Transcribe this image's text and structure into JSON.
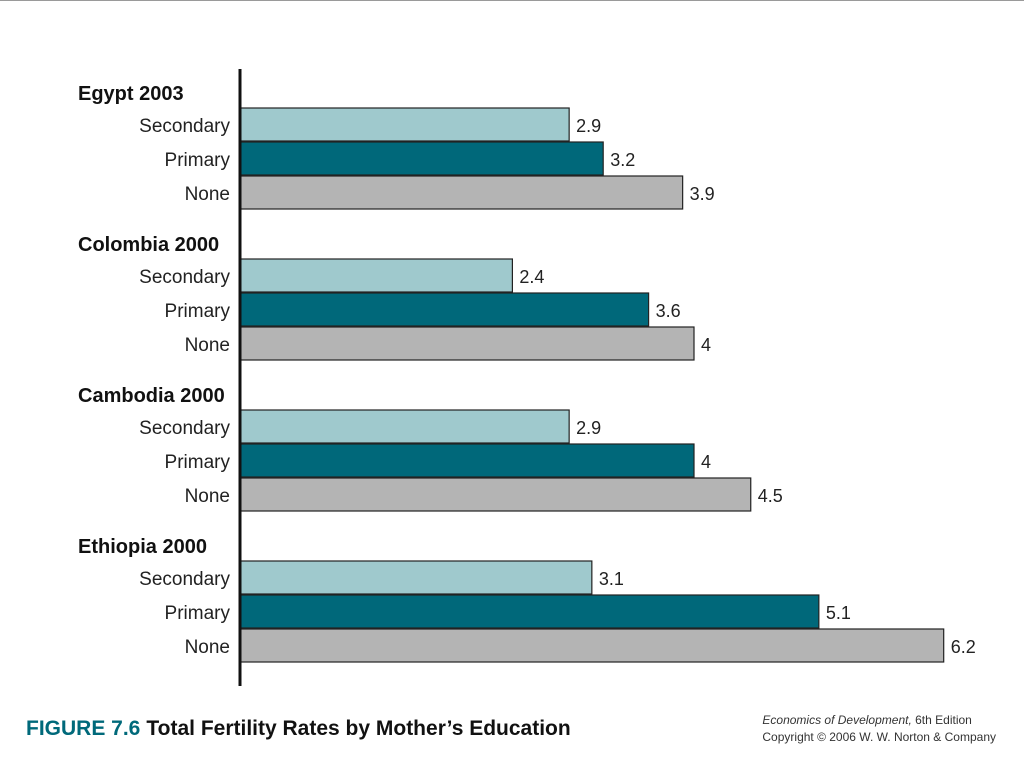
{
  "figure": {
    "number": "FIGURE 7.6",
    "title": "Total Fertility Rates by Mother’s Education"
  },
  "credit": {
    "book_title": "Economics of Development,",
    "edition": " 6th Edition",
    "copyright": "Copyright © 2006 W. W. Norton & Company"
  },
  "colors": {
    "Secondary": "#9fc9cd",
    "Primary": "#00687a",
    "None": "#b4b4b4",
    "border": "#222222"
  },
  "chart_data": {
    "type": "bar",
    "orientation": "horizontal",
    "title": "Total Fertility Rates by Mother’s Education",
    "xlabel": "",
    "ylabel": "",
    "xlim": [
      0,
      6.2
    ],
    "grid": false,
    "legend": "none",
    "groups": [
      {
        "name": "Egypt 2003",
        "bars": [
          {
            "category": "Secondary",
            "value": 2.9,
            "label": "2.9"
          },
          {
            "category": "Primary",
            "value": 3.2,
            "label": "3.2"
          },
          {
            "category": "None",
            "value": 3.9,
            "label": "3.9"
          }
        ]
      },
      {
        "name": "Colombia 2000",
        "bars": [
          {
            "category": "Secondary",
            "value": 2.4,
            "label": "2.4"
          },
          {
            "category": "Primary",
            "value": 3.6,
            "label": "3.6"
          },
          {
            "category": "None",
            "value": 4,
            "label": "4"
          }
        ]
      },
      {
        "name": "Cambodia 2000",
        "bars": [
          {
            "category": "Secondary",
            "value": 2.9,
            "label": "2.9"
          },
          {
            "category": "Primary",
            "value": 4,
            "label": "4"
          },
          {
            "category": "None",
            "value": 4.5,
            "label": "4.5"
          }
        ]
      },
      {
        "name": "Ethiopia 2000",
        "bars": [
          {
            "category": "Secondary",
            "value": 3.1,
            "label": "3.1"
          },
          {
            "category": "Primary",
            "value": 5.1,
            "label": "5.1"
          },
          {
            "category": "None",
            "value": 6.2,
            "label": "6.2"
          }
        ]
      }
    ]
  }
}
